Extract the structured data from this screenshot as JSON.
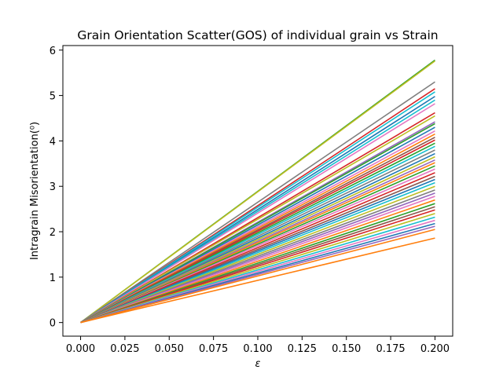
{
  "chart_data": {
    "type": "line",
    "title": "Grain Orientation Scatter(GOS) of individual grain vs Strain",
    "xlabel": "ε",
    "ylabel": "Intragrain Misorientation(⁰)",
    "xlim": [
      -0.01,
      0.21
    ],
    "ylim": [
      -0.3,
      6.1
    ],
    "xticks": [
      "0.000",
      "0.025",
      "0.050",
      "0.075",
      "0.100",
      "0.125",
      "0.150",
      "0.175",
      "0.200"
    ],
    "yticks": [
      "0",
      "1",
      "2",
      "3",
      "4",
      "5",
      "6"
    ],
    "grid": false,
    "legend": "none",
    "x": [
      0,
      0.2
    ],
    "series": [
      {
        "color": "#2ca02c",
        "values": [
          0,
          5.78
        ]
      },
      {
        "color": "#bcbd22",
        "values": [
          0,
          5.76
        ]
      },
      {
        "color": "#7f7f7f",
        "values": [
          0,
          5.3
        ]
      },
      {
        "color": "#d62728",
        "values": [
          0,
          5.15
        ]
      },
      {
        "color": "#17becf",
        "values": [
          0,
          5.08
        ]
      },
      {
        "color": "#1f77b4",
        "values": [
          0,
          4.98
        ]
      },
      {
        "color": "#17becf",
        "values": [
          0,
          4.9
        ]
      },
      {
        "color": "#e377c2",
        "values": [
          0,
          4.82
        ]
      },
      {
        "color": "#d62728",
        "values": [
          0,
          4.62
        ]
      },
      {
        "color": "#bcbd22",
        "values": [
          0,
          4.55
        ]
      },
      {
        "color": "#9467bd",
        "values": [
          0,
          4.42
        ]
      },
      {
        "color": "#2ca02c",
        "values": [
          0,
          4.38
        ]
      },
      {
        "color": "#1f77b4",
        "values": [
          0,
          4.3
        ]
      },
      {
        "color": "#e377c2",
        "values": [
          0,
          4.22
        ]
      },
      {
        "color": "#ff7f0e",
        "values": [
          0,
          4.15
        ]
      },
      {
        "color": "#8c564b",
        "values": [
          0,
          4.08
        ]
      },
      {
        "color": "#d62728",
        "values": [
          0,
          4.02
        ]
      },
      {
        "color": "#2ca02c",
        "values": [
          0,
          3.95
        ]
      },
      {
        "color": "#17becf",
        "values": [
          0,
          3.88
        ]
      },
      {
        "color": "#7f7f7f",
        "values": [
          0,
          3.8
        ]
      },
      {
        "color": "#1f77b4",
        "values": [
          0,
          3.72
        ]
      },
      {
        "color": "#bcbd22",
        "values": [
          0,
          3.65
        ]
      },
      {
        "color": "#9467bd",
        "values": [
          0,
          3.58
        ]
      },
      {
        "color": "#ff7f0e",
        "values": [
          0,
          3.52
        ]
      },
      {
        "color": "#2ca02c",
        "values": [
          0,
          3.45
        ]
      },
      {
        "color": "#e377c2",
        "values": [
          0,
          3.38
        ]
      },
      {
        "color": "#d62728",
        "values": [
          0,
          3.3
        ]
      },
      {
        "color": "#8c564b",
        "values": [
          0,
          3.22
        ]
      },
      {
        "color": "#1f77b4",
        "values": [
          0,
          3.15
        ]
      },
      {
        "color": "#17becf",
        "values": [
          0,
          3.08
        ]
      },
      {
        "color": "#bcbd22",
        "values": [
          0,
          3.0
        ]
      },
      {
        "color": "#7f7f7f",
        "values": [
          0,
          2.92
        ]
      },
      {
        "color": "#9467bd",
        "values": [
          0,
          2.85
        ]
      },
      {
        "color": "#e377c2",
        "values": [
          0,
          2.78
        ]
      },
      {
        "color": "#ff7f0e",
        "values": [
          0,
          2.7
        ]
      },
      {
        "color": "#2ca02c",
        "values": [
          0,
          2.62
        ]
      },
      {
        "color": "#8c564b",
        "values": [
          0,
          2.55
        ]
      },
      {
        "color": "#d62728",
        "values": [
          0,
          2.48
        ]
      },
      {
        "color": "#bcbd22",
        "values": [
          0,
          2.4
        ]
      },
      {
        "color": "#17becf",
        "values": [
          0,
          2.32
        ]
      },
      {
        "color": "#e377c2",
        "values": [
          0,
          2.25
        ]
      },
      {
        "color": "#1f77b4",
        "values": [
          0,
          2.18
        ]
      },
      {
        "color": "#9467bd",
        "values": [
          0,
          2.12
        ]
      },
      {
        "color": "#ff7f0e",
        "values": [
          0,
          2.05
        ]
      },
      {
        "color": "#ff7f0e",
        "values": [
          0,
          1.86
        ]
      }
    ]
  }
}
